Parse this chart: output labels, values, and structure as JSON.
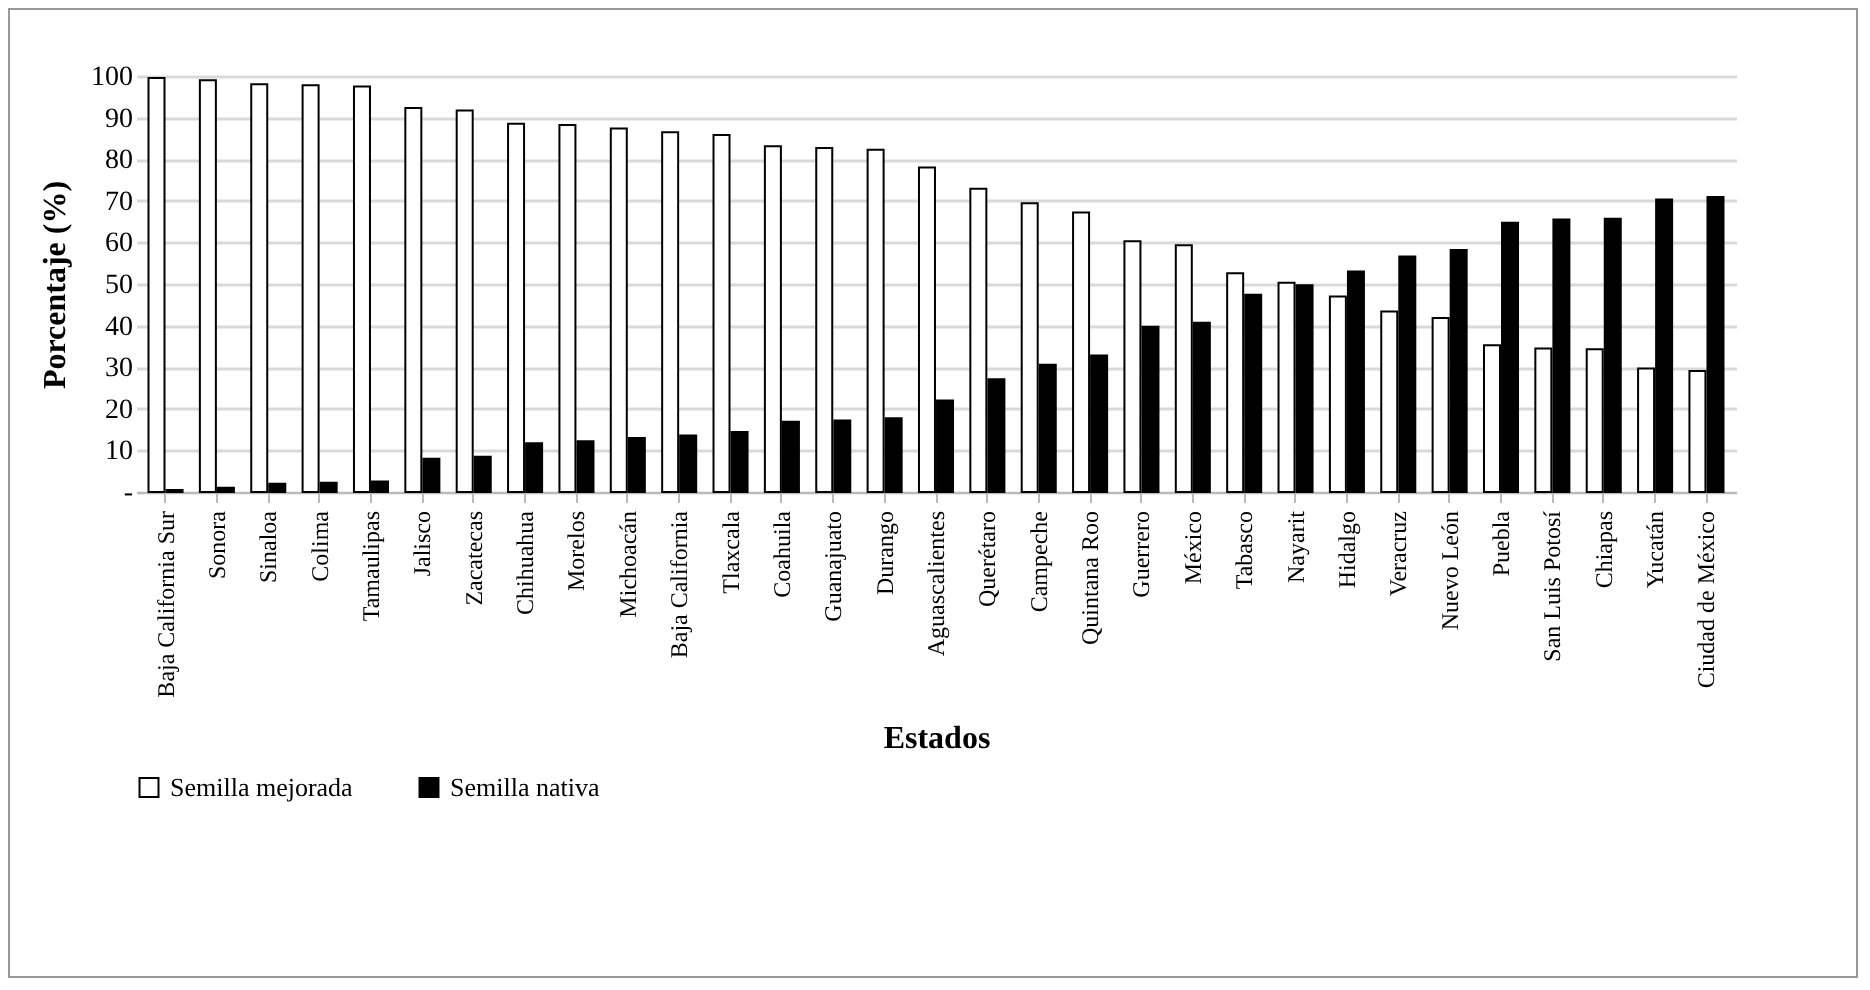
{
  "chart_data": {
    "type": "bar",
    "xlabel": "Estados",
    "ylabel": "Porcentaje (%)",
    "categories": [
      "Baja California Sur",
      "Sonora",
      "Sinaloa",
      "Colima",
      "Tamaulipas",
      "Jalisco",
      "Zacatecas",
      "Chihuahua",
      "Morelos",
      "Michoacán",
      "Baja California",
      "Tlaxcala",
      "Coahuila",
      "Guanajuato",
      "Durango",
      "Aguascalientes",
      "Querétaro",
      "Campeche",
      "Quintana Roo",
      "Guerrero",
      "México",
      "Tabasco",
      "Nayarit",
      "Hidalgo",
      "Veracruz",
      "Nuevo León",
      "Puebla",
      "San Luis Potosí",
      "Chiapas",
      "Yucatán",
      "Ciudad de México"
    ],
    "series": [
      {
        "name": "Semilla mejorada",
        "color": "#ffffff",
        "values": [
          99.5,
          99,
          98,
          97.8,
          97.5,
          92.3,
          91.7,
          88.5,
          88.2,
          87.4,
          86.5,
          85.8,
          83.1,
          82.7,
          82.3,
          78,
          72.9,
          69.4,
          67.2,
          60.3,
          59.3,
          52.6,
          50.3,
          47,
          43.4,
          41.8,
          35.3,
          34.5,
          34.3,
          29.7,
          29.1
        ]
      },
      {
        "name": "Semilla nativa",
        "color": "#000000",
        "values": [
          0.5,
          1,
          2,
          2.2,
          2.5,
          8,
          8.5,
          11.7,
          12.2,
          13,
          13.6,
          14.4,
          16.9,
          17.2,
          17.7,
          22,
          27.1,
          30.6,
          32.8,
          39.7,
          40.7,
          47.4,
          49.7,
          53,
          56.6,
          58.2,
          64.7,
          65.5,
          65.7,
          70.3,
          70.9
        ]
      }
    ],
    "ylim": [
      0,
      100
    ],
    "yticks": [
      {
        "value": 0,
        "label": "-"
      },
      10,
      20,
      30,
      40,
      50,
      60,
      70,
      80,
      90,
      100
    ],
    "grid": "y",
    "legend": "bottom"
  }
}
